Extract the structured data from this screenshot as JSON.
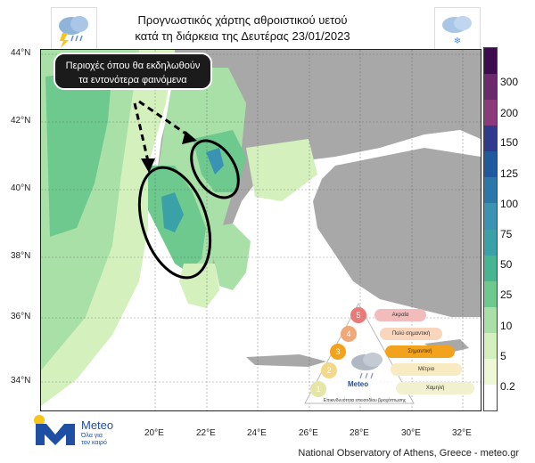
{
  "title": {
    "line1": "Προγνωστικός χάρτης αθροιστικού υετού",
    "line2": "κατά τη διάρκεια της Δευτέρας 23/01/2023"
  },
  "icons": {
    "left": "thunder-rain-cloud-icon",
    "right": "snow-cloud-icon"
  },
  "callout": {
    "line1": "Περιοχές όπου θα εκδηλωθούν",
    "line2": "τα εντονότερα φαινόμενα"
  },
  "axes": {
    "lat_labels": [
      "44°N",
      "42°N",
      "40°N",
      "38°N",
      "36°N",
      "34°N"
    ],
    "lon_labels": [
      "20°E",
      "22°E",
      "24°E",
      "26°E",
      "28°E",
      "30°E",
      "32°E"
    ]
  },
  "colorbar": {
    "labels": [
      "300",
      "200",
      "150",
      "125",
      "100",
      "75",
      "50",
      "25",
      "10",
      "5",
      "0.2"
    ],
    "colors": [
      "#3d0c4f",
      "#6b2a6b",
      "#8b3b7a",
      "#2f3a8f",
      "#1f5a9e",
      "#2b78a8",
      "#3a93b3",
      "#3aa1a6",
      "#47b592",
      "#6ec98f",
      "#a8e0a8",
      "#d4f0bd",
      "#eef7d6",
      "#ffffff"
    ]
  },
  "scale": {
    "levels": [
      {
        "num": "5",
        "label": "Ακραία",
        "color": "#e87a7a",
        "pill": "#f3bcbc"
      },
      {
        "num": "4",
        "label": "Πολύ σημαντική",
        "color": "#f0a878",
        "pill": "#f8d6be"
      },
      {
        "num": "3",
        "label": "Σημαντική",
        "color": "#f3a21d",
        "pill": "#f3a21d"
      },
      {
        "num": "2",
        "label": "Μέτρια",
        "color": "#f3d889",
        "pill": "#f8ebc2"
      },
      {
        "num": "1",
        "label": "Χαμηλή",
        "color": "#e5e5a8",
        "pill": "#f1f1cf"
      }
    ],
    "caption": "Επικινδυνότητα επεισοδίου βροχόπτωσης",
    "brand": "Meteo"
  },
  "logo": {
    "word": "Meteo",
    "tagline_1": "Όλα για",
    "tagline_2": "τον καιρό"
  },
  "credit": "National Observatory of Athens, Greece - meteo.gr"
}
